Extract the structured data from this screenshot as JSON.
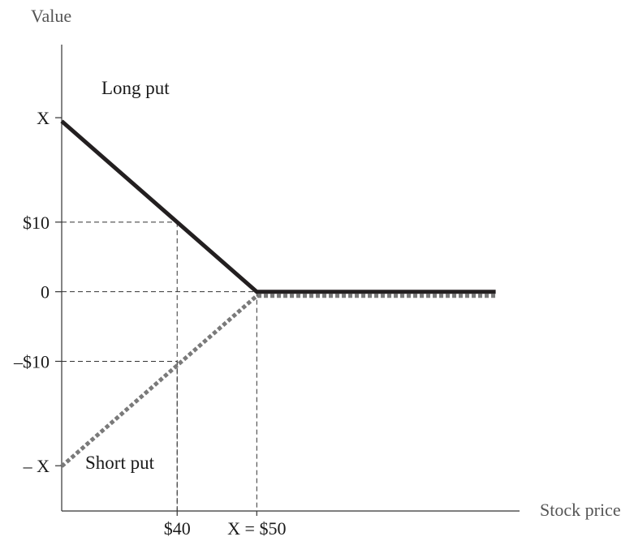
{
  "chart_data": {
    "type": "line",
    "ylabel": "Value",
    "xlabel": "Stock price",
    "x_ticks": [
      {
        "value": 40,
        "label": "$40"
      },
      {
        "value": 50,
        "label": "X = $50"
      }
    ],
    "y_ticks": [
      {
        "value": 25,
        "label": "X"
      },
      {
        "value": 10,
        "label": "$10"
      },
      {
        "value": 0,
        "label": "0"
      },
      {
        "value": -10,
        "label": "–$10"
      },
      {
        "value": -25,
        "label": "– X"
      }
    ],
    "xlim": [
      25.5,
      83
    ],
    "ylim": [
      -31.5,
      35.5
    ],
    "grid": false,
    "reference_lines": [
      {
        "x": 40,
        "y": 10
      },
      {
        "x": 40,
        "y": -10
      },
      {
        "x": 50,
        "y": 0
      }
    ],
    "series": [
      {
        "name": "Long put",
        "style": "solid",
        "color": "#231f20",
        "points": [
          [
            25.5,
            24.5
          ],
          [
            50,
            0
          ],
          [
            80,
            0
          ]
        ]
      },
      {
        "name": "Short put",
        "style": "dotted",
        "color": "#7a7a7a",
        "points": [
          [
            25.5,
            -24.5
          ],
          [
            50,
            0
          ],
          [
            80,
            0
          ]
        ]
      }
    ]
  }
}
